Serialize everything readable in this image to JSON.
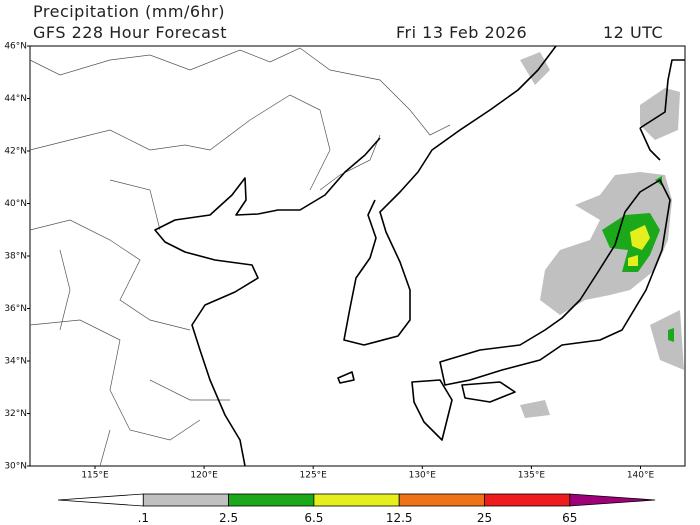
{
  "header": {
    "title": "Precipitation (mm/6hr)",
    "model": "GFS 228 Hour Forecast",
    "date": "Fri 13 Feb 2026",
    "time": "12 UTC"
  },
  "lat_labels": [
    "46°N",
    "44°N",
    "42°N",
    "40°N",
    "38°N",
    "36°N",
    "34°N",
    "32°N",
    "30°N"
  ],
  "lon_labels": [
    "115°E",
    "120°E",
    "125°E",
    "130°E",
    "135°E",
    "140°E"
  ],
  "colorbar": {
    "labels": [
      ".1",
      "2.5",
      "6.5",
      "12.5",
      "25",
      "65"
    ],
    "colors": [
      "#ffffff",
      "#c0c0c0",
      "#1ba81b",
      "#e5ef1d",
      "#f07218",
      "#ee1c1c",
      "#9e0078"
    ]
  }
}
